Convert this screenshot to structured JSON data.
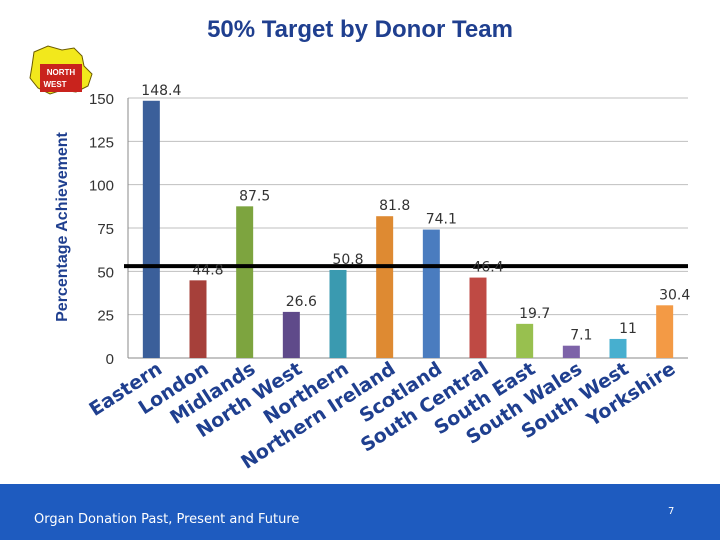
{
  "slide": {
    "footer": "Organ Donation Past, Present and Future",
    "page_number": "7",
    "logo_text_line1": "NORTH",
    "logo_text_line2": "WEST"
  },
  "colors": {
    "title": "#1f3f8f",
    "footer_bg": "#1e5bbf",
    "target_line": "#000000"
  },
  "chart_data": {
    "type": "bar",
    "title": "50% Target by Donor Team",
    "ylabel": "Percentage Achievement",
    "xlabel": "",
    "ylim": [
      0,
      150
    ],
    "yticks": [
      0,
      25,
      50,
      75,
      100,
      125,
      150
    ],
    "grid": true,
    "target_line": 53,
    "categories": [
      "Eastern",
      "London",
      "Midlands",
      "North West",
      "Northern",
      "Northern Ireland",
      "Scotland",
      "South Central",
      "South East",
      "South Wales",
      "South West",
      "Yorkshire"
    ],
    "values": [
      148.4,
      44.8,
      87.5,
      26.6,
      50.8,
      81.8,
      74.1,
      46.4,
      19.7,
      7.1,
      11,
      30.4
    ],
    "value_labels": [
      "148.4",
      "44.8",
      "87.5",
      "26.6",
      "50.8",
      "81.8",
      "74.1",
      "46.4",
      "19.7",
      "7.1",
      "11",
      "30.4"
    ],
    "bar_colors": [
      "#3b5f9a",
      "#a6403a",
      "#7da43f",
      "#5f4a8a",
      "#3a9ab0",
      "#de8a32",
      "#4a7cbf",
      "#bf4a44",
      "#98c04f",
      "#7d63a8",
      "#47afcf",
      "#f39a45"
    ]
  }
}
